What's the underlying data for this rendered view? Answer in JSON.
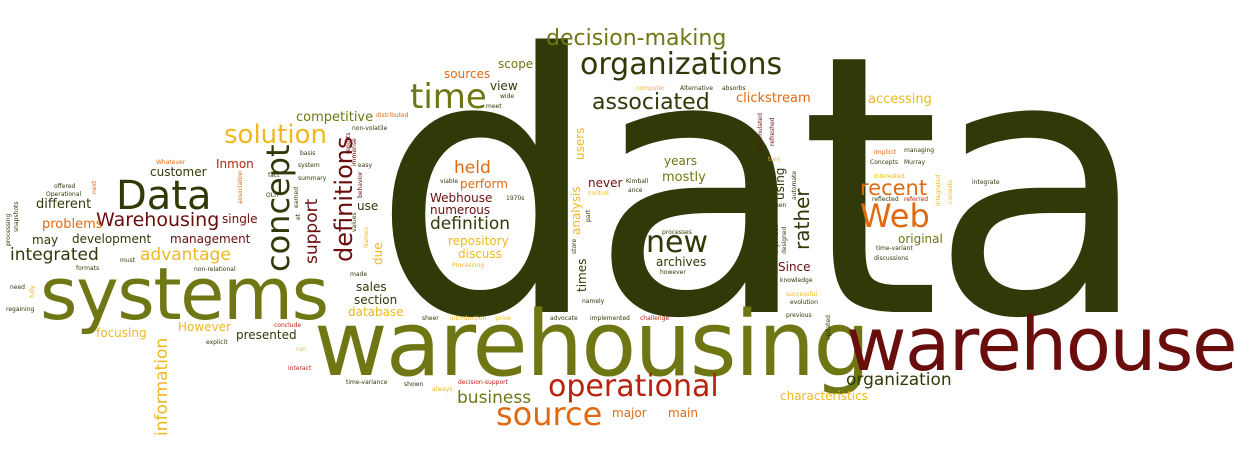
{
  "colors": {
    "darkgreen": "#2f3a08",
    "olive": "#6f7714",
    "maroon": "#6a0d0d",
    "orange": "#e06a12",
    "gold": "#f0b81e",
    "brown": "#7a3c12",
    "red": "#b8220e"
  },
  "words": [
    {
      "text": "data",
      "color": "darkgreen"
    },
    {
      "text": "warehousing",
      "color": "olive"
    },
    {
      "text": "warehouse",
      "color": "maroon"
    },
    {
      "text": "systems",
      "color": "olive"
    },
    {
      "text": "organizations",
      "color": "darkgreen"
    },
    {
      "text": "decision-making",
      "color": "olive"
    },
    {
      "text": "Data",
      "color": "darkgreen"
    },
    {
      "text": "time",
      "color": "olive"
    },
    {
      "text": "associated",
      "color": "darkgreen"
    },
    {
      "text": "solution",
      "color": "gold"
    },
    {
      "text": "Web",
      "color": "orange"
    },
    {
      "text": "concept",
      "color": "darkgreen"
    },
    {
      "text": "operational",
      "color": "red"
    },
    {
      "text": "source",
      "color": "orange"
    },
    {
      "text": "new",
      "color": "darkgreen"
    },
    {
      "text": "definitions",
      "color": "maroon"
    },
    {
      "text": "Warehousing",
      "color": "maroon"
    },
    {
      "text": "recent",
      "color": "orange"
    },
    {
      "text": "organization",
      "color": "darkgreen"
    },
    {
      "text": "definition",
      "color": "darkgreen"
    },
    {
      "text": "rather",
      "color": "darkgreen"
    },
    {
      "text": "integrated",
      "color": "darkgreen"
    },
    {
      "text": "advantage",
      "color": "gold"
    },
    {
      "text": "held",
      "color": "orange"
    },
    {
      "text": "information",
      "color": "gold"
    },
    {
      "text": "support",
      "color": "maroon"
    },
    {
      "text": "business",
      "color": "olive"
    },
    {
      "text": "clickstream",
      "color": "orange"
    },
    {
      "text": "accessing",
      "color": "gold"
    },
    {
      "text": "competitive",
      "color": "olive"
    },
    {
      "text": "sources",
      "color": "orange"
    },
    {
      "text": "scope",
      "color": "olive"
    },
    {
      "text": "view",
      "color": "darkgreen"
    },
    {
      "text": "Inmon",
      "color": "red"
    },
    {
      "text": "customer",
      "color": "darkgreen"
    },
    {
      "text": "different",
      "color": "darkgreen"
    },
    {
      "text": "problems",
      "color": "orange"
    },
    {
      "text": "single",
      "color": "maroon"
    },
    {
      "text": "may",
      "color": "darkgreen"
    },
    {
      "text": "development",
      "color": "darkgreen"
    },
    {
      "text": "management",
      "color": "maroon"
    },
    {
      "text": "perform",
      "color": "orange"
    },
    {
      "text": "Webhouse",
      "color": "maroon"
    },
    {
      "text": "numerous",
      "color": "maroon"
    },
    {
      "text": "repository",
      "color": "gold"
    },
    {
      "text": "discuss",
      "color": "gold"
    },
    {
      "text": "mostly",
      "color": "olive"
    },
    {
      "text": "years",
      "color": "olive"
    },
    {
      "text": "archives",
      "color": "darkgreen"
    },
    {
      "text": "never",
      "color": "maroon"
    },
    {
      "text": "analysis",
      "color": "gold"
    },
    {
      "text": "times",
      "color": "darkgreen"
    },
    {
      "text": "users",
      "color": "gold"
    },
    {
      "text": "using",
      "color": "darkgreen"
    },
    {
      "text": "Since",
      "color": "maroon"
    },
    {
      "text": "original",
      "color": "olive"
    },
    {
      "text": "use",
      "color": "darkgreen"
    },
    {
      "text": "due",
      "color": "gold"
    },
    {
      "text": "sales",
      "color": "darkgreen"
    },
    {
      "text": "section",
      "color": "darkgreen"
    },
    {
      "text": "database",
      "color": "gold"
    },
    {
      "text": "However",
      "color": "gold"
    },
    {
      "text": "focusing",
      "color": "gold"
    },
    {
      "text": "presented",
      "color": "darkgreen"
    },
    {
      "text": "major",
      "color": "orange"
    },
    {
      "text": "main",
      "color": "orange"
    },
    {
      "text": "characteristics",
      "color": "gold"
    },
    {
      "text": "Concepts",
      "color": "darkgreen"
    },
    {
      "text": "Murray",
      "color": "darkgreen"
    },
    {
      "text": "managing",
      "color": "darkgreen"
    },
    {
      "text": "Implicit",
      "color": "orange"
    },
    {
      "text": "Interested",
      "color": "gold"
    },
    {
      "text": "integrate",
      "color": "darkgreen"
    },
    {
      "text": "reflected",
      "color": "darkgreen"
    },
    {
      "text": "referred",
      "color": "red"
    },
    {
      "text": "time-variant",
      "color": "darkgreen"
    },
    {
      "text": "discussions",
      "color": "darkgreen"
    },
    {
      "text": "computer",
      "color": "gold"
    },
    {
      "text": "Alternative",
      "color": "darkgreen"
    },
    {
      "text": "absorbs",
      "color": "darkgreen"
    },
    {
      "text": "non-volatile",
      "color": "darkgreen"
    },
    {
      "text": "distributed",
      "color": "orange"
    },
    {
      "text": "basis",
      "color": "darkgreen"
    },
    {
      "text": "system",
      "color": "darkgreen"
    },
    {
      "text": "fact",
      "color": "darkgreen"
    },
    {
      "text": "summary",
      "color": "darkgreen"
    },
    {
      "text": "easy",
      "color": "darkgreen"
    },
    {
      "text": "Whatever",
      "color": "orange"
    },
    {
      "text": "offered",
      "color": "darkgreen"
    },
    {
      "text": "Operational",
      "color": "darkgreen"
    },
    {
      "text": "OLTP",
      "color": "darkgreen"
    },
    {
      "text": "formats",
      "color": "darkgreen"
    },
    {
      "text": "must",
      "color": "darkgreen"
    },
    {
      "text": "non-relational",
      "color": "darkgreen"
    },
    {
      "text": "need",
      "color": "darkgreen"
    },
    {
      "text": "regaining",
      "color": "darkgreen"
    },
    {
      "text": "explicit",
      "color": "darkgreen"
    },
    {
      "text": "conclude",
      "color": "red"
    },
    {
      "text": "run",
      "color": "gold"
    },
    {
      "text": "interact",
      "color": "red"
    },
    {
      "text": "made",
      "color": "darkgreen"
    },
    {
      "text": "time-variance",
      "color": "darkgreen"
    },
    {
      "text": "shown",
      "color": "darkgreen"
    },
    {
      "text": "always",
      "color": "gold"
    },
    {
      "text": "decision-support",
      "color": "red"
    },
    {
      "text": "sheer",
      "color": "darkgreen"
    },
    {
      "text": "introduction",
      "color": "gold"
    },
    {
      "text": "prise",
      "color": "gold"
    },
    {
      "text": "advocate",
      "color": "darkgreen"
    },
    {
      "text": "implemented",
      "color": "darkgreen"
    },
    {
      "text": "challenge",
      "color": "red"
    },
    {
      "text": "namely",
      "color": "darkgreen"
    },
    {
      "text": "Processing",
      "color": "gold"
    },
    {
      "text": "however",
      "color": "darkgreen"
    },
    {
      "text": "processes",
      "color": "darkgreen"
    },
    {
      "text": "knowledge",
      "color": "darkgreen"
    },
    {
      "text": "successful",
      "color": "gold"
    },
    {
      "text": "previous",
      "color": "darkgreen"
    },
    {
      "text": "evolution",
      "color": "darkgreen"
    },
    {
      "text": "updated",
      "color": "darkgreen"
    },
    {
      "text": "seen",
      "color": "darkgreen"
    },
    {
      "text": "turn",
      "color": "gold"
    },
    {
      "text": "meet",
      "color": "darkgreen"
    },
    {
      "text": "wide",
      "color": "darkgreen"
    },
    {
      "text": "viable",
      "color": "darkgreen"
    },
    {
      "text": "1970s",
      "color": "darkgreen"
    },
    {
      "text": "Kimball",
      "color": "darkgreen"
    },
    {
      "text": "ance",
      "color": "darkgreen"
    },
    {
      "text": "control",
      "color": "gold"
    },
    {
      "text": "store",
      "color": "darkgreen"
    },
    {
      "text": "part",
      "color": "darkgreen"
    },
    {
      "text": "earned",
      "color": "darkgreen"
    },
    {
      "text": "et",
      "color": "darkgreen"
    },
    {
      "text": "reports",
      "color": "maroon"
    },
    {
      "text": "immense",
      "color": "maroon"
    },
    {
      "text": "behavior",
      "color": "maroon"
    },
    {
      "text": "values",
      "color": "darkgreen"
    },
    {
      "text": "Names",
      "color": "gold"
    },
    {
      "text": "next",
      "color": "orange"
    },
    {
      "text": "association",
      "color": "orange"
    },
    {
      "text": "processing",
      "color": "darkgreen"
    },
    {
      "text": "snapshots",
      "color": "darkgreen"
    },
    {
      "text": "fully",
      "color": "gold"
    },
    {
      "text": "accumulated",
      "color": "maroon"
    },
    {
      "text": "refreshed",
      "color": "maroon"
    },
    {
      "text": "automate",
      "color": "darkgreen"
    },
    {
      "text": "organized",
      "color": "darkgreen"
    },
    {
      "text": "designed",
      "color": "darkgreen"
    },
    {
      "text": "integrated",
      "color": "gold"
    },
    {
      "text": "consists",
      "color": "gold"
    }
  ]
}
